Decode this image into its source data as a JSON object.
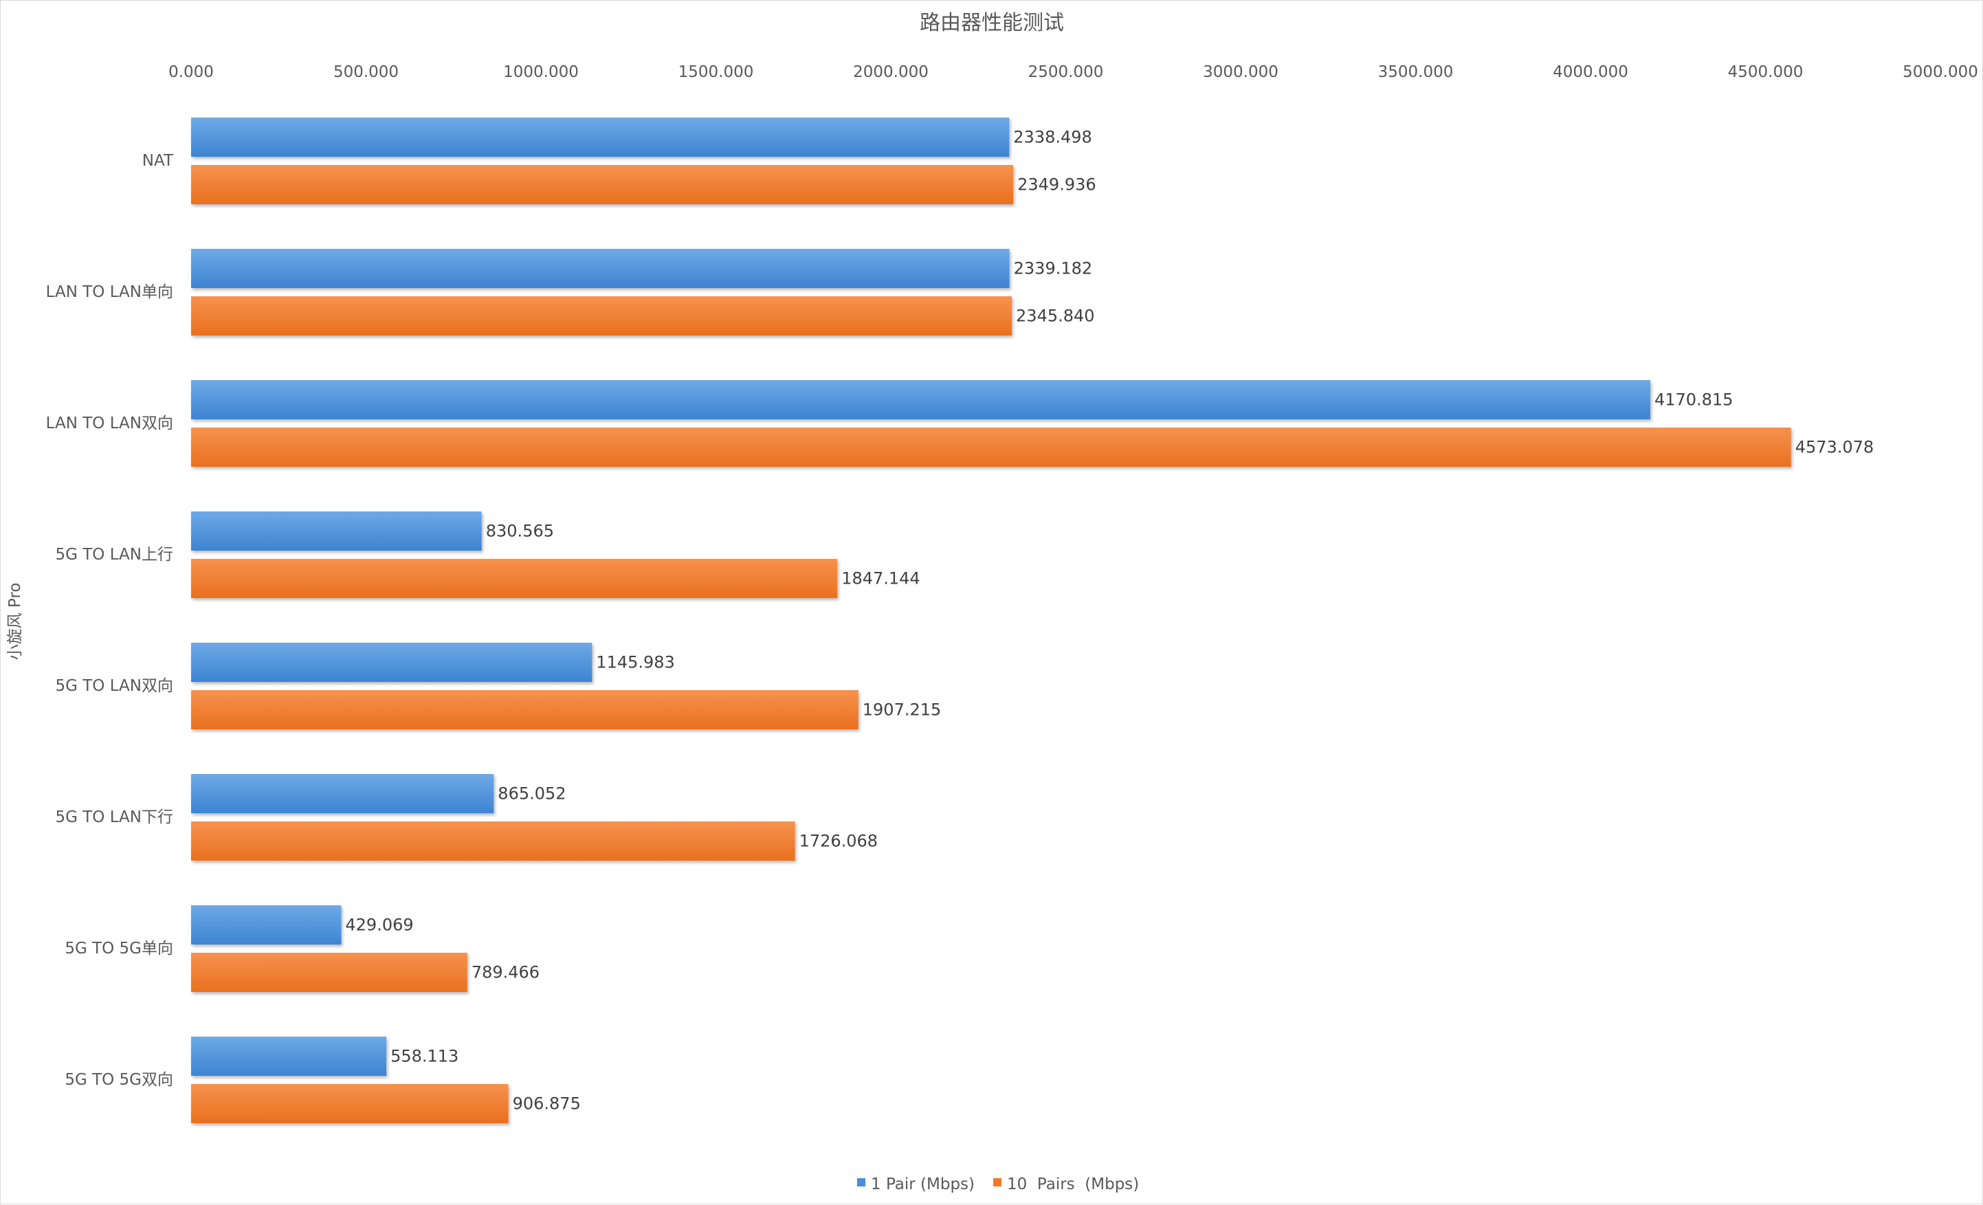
{
  "chart_data": {
    "type": "bar",
    "orientation": "horizontal",
    "title": "路由器性能测试",
    "ylabel": "小旋风 Pro",
    "xlabel": "",
    "xlim": [
      0,
      5000
    ],
    "x_ticks": [
      "0.000",
      "500.000",
      "1000.000",
      "1500.000",
      "2000.000",
      "2500.000",
      "3000.000",
      "3500.000",
      "4000.000",
      "4500.000",
      "5000.000"
    ],
    "x_tick_values": [
      0,
      500,
      1000,
      1500,
      2000,
      2500,
      3000,
      3500,
      4000,
      4500,
      5000
    ],
    "x_axis_position": "top",
    "grid": false,
    "legend_position": "bottom",
    "categories": [
      "NAT",
      "LAN TO LAN单向",
      "LAN TO LAN双向",
      "5G TO LAN上行",
      "5G TO LAN双向",
      "5G TO LAN下行",
      "5G TO 5G单向",
      "5G TO 5G双向"
    ],
    "series": [
      {
        "name": "1 Pair (Mbps)",
        "color": "#4a8ed8",
        "values": [
          2338.498,
          2339.182,
          4170.815,
          830.565,
          1145.983,
          865.052,
          429.069,
          558.113
        ],
        "labels": [
          "2338.498",
          "2339.182",
          "4170.815",
          "830.565",
          "1145.983",
          "865.052",
          "429.069",
          "558.113"
        ]
      },
      {
        "name": "10  Pairs  (Mbps)",
        "color": "#f07a2a",
        "values": [
          2349.936,
          2345.84,
          4573.078,
          1847.144,
          1907.215,
          1726.068,
          789.466,
          906.875
        ],
        "labels": [
          "2349.936",
          "2345.840",
          "4573.078",
          "1847.144",
          "1907.215",
          "1726.068",
          "789.466",
          "906.875"
        ]
      }
    ]
  }
}
